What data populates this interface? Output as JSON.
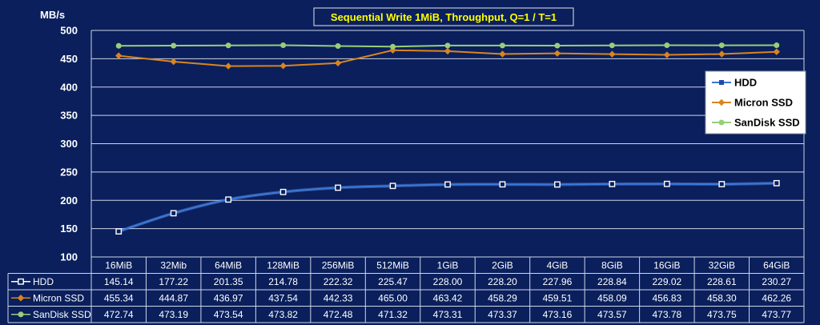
{
  "chart_data": {
    "type": "line",
    "title": "Sequential Write 1MiB, Throughput, Q=1 / T=1",
    "ylabel": "MB/s",
    "ylim": [
      100,
      500
    ],
    "yticks": [
      "100",
      "150",
      "200",
      "250",
      "300",
      "350",
      "400",
      "450",
      "500"
    ],
    "grid": true,
    "legend_position": "right",
    "categories": [
      "16MiB",
      "32Mib",
      "64MiB",
      "128MiB",
      "256MiB",
      "512MiB",
      "1GiB",
      "2GiB",
      "4GiB",
      "8GiB",
      "16GiB",
      "32GiB",
      "64GiB"
    ],
    "series": [
      {
        "name": "HDD",
        "color": "#3a78d8",
        "values": [
          145.14,
          177.22,
          201.35,
          214.78,
          222.32,
          225.47,
          228.0,
          228.2,
          227.96,
          228.84,
          229.02,
          228.61,
          230.27
        ],
        "labels": [
          "145.14",
          "177.22",
          "201.35",
          "214.78",
          "222.32",
          "225.47",
          "228.00",
          "228.20",
          "227.96",
          "228.84",
          "229.02",
          "228.61",
          "230.27"
        ]
      },
      {
        "name": "Micron SSD",
        "color": "#d9851f",
        "values": [
          455.34,
          444.87,
          436.97,
          437.54,
          442.33,
          465.0,
          463.42,
          458.29,
          459.51,
          458.09,
          456.83,
          458.3,
          462.26
        ],
        "labels": [
          "455.34",
          "444.87",
          "436.97",
          "437.54",
          "442.33",
          "465.00",
          "463.42",
          "458.29",
          "459.51",
          "458.09",
          "456.83",
          "458.30",
          "462.26"
        ]
      },
      {
        "name": "SanDisk SSD",
        "color": "#9acd7a",
        "values": [
          472.74,
          473.19,
          473.54,
          473.82,
          472.48,
          471.32,
          473.31,
          473.37,
          473.16,
          473.57,
          473.78,
          473.75,
          473.77
        ],
        "labels": [
          "472.74",
          "473.19",
          "473.54",
          "473.82",
          "472.48",
          "471.32",
          "473.31",
          "473.37",
          "473.16",
          "473.57",
          "473.78",
          "473.75",
          "473.77"
        ]
      }
    ]
  }
}
